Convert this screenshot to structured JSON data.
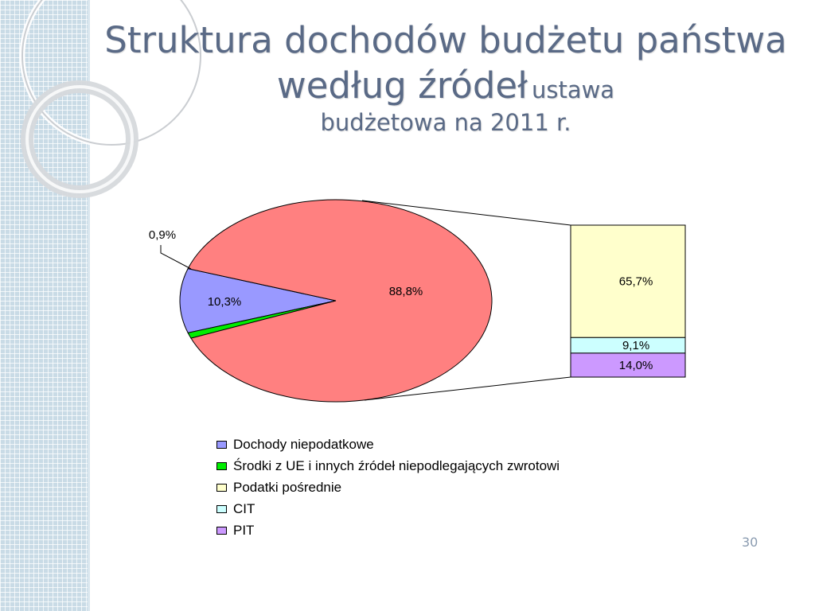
{
  "slide": {
    "title_main": "Struktura dochodów budżetu państwa według źródeł",
    "title_sub_1": "ustawa",
    "title_sub_2": "budżetowa na 2011 r.",
    "page_number": "30"
  },
  "chart_data": {
    "type": "pie",
    "title": "",
    "pie": {
      "slices": [
        {
          "label": "Dochody niepodatkowe",
          "value": 10.3,
          "value_label": "10,3%",
          "color": "#9999ff"
        },
        {
          "label": "Środki z UE i innych źródeł niepodlegających zwrotowi",
          "value": 0.9,
          "value_label": "0,9%",
          "color": "#00ee00"
        },
        {
          "label": "Podatki",
          "value": 88.8,
          "value_label": "88,8%",
          "color": "#ff8080"
        }
      ]
    },
    "breakdown_bar": {
      "of_slice": "88,8%",
      "segments": [
        {
          "label": "Podatki pośrednie",
          "value": 65.7,
          "value_label": "65,7%",
          "color": "#ffffcc"
        },
        {
          "label": "CIT",
          "value": 9.1,
          "value_label": "9,1%",
          "color": "#ccffff"
        },
        {
          "label": "PIT",
          "value": 14.0,
          "value_label": "14,0%",
          "color": "#cc99ff"
        }
      ]
    },
    "legend": [
      {
        "label": "Dochody niepodatkowe",
        "color": "#9999ff"
      },
      {
        "label": "Środki z UE i innych źródeł niepodlegających zwrotowi",
        "color": "#00ee00"
      },
      {
        "label": "Podatki pośrednie",
        "color": "#ffffcc"
      },
      {
        "label": "CIT",
        "color": "#ccffff"
      },
      {
        "label": "PIT",
        "color": "#cc99ff"
      }
    ],
    "legend_position": "bottom"
  }
}
